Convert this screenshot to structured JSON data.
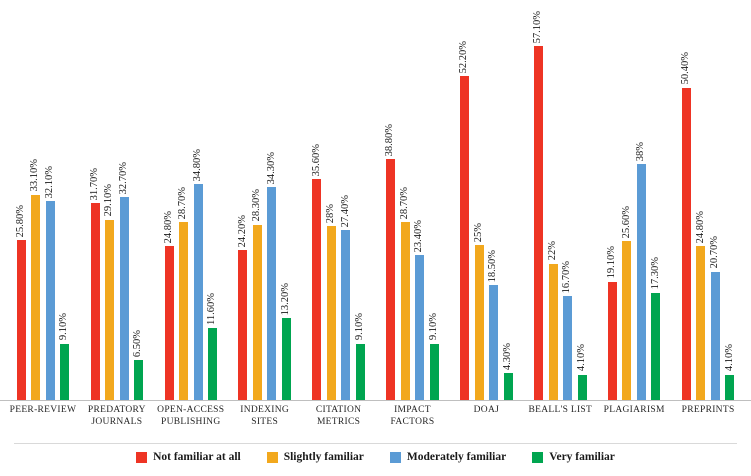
{
  "chart_data": {
    "type": "bar",
    "title": "",
    "xlabel": "",
    "ylabel": "",
    "ylim": [
      0,
      60
    ],
    "grid": false,
    "legend_position": "bottom",
    "value_label_format": "percent",
    "categories": [
      [
        "PEER-REVIEW"
      ],
      [
        "PREDATORY",
        "JOURNALS"
      ],
      [
        "OPEN-ACCESS",
        "PUBLISHING"
      ],
      [
        "INDEXING",
        "SITES"
      ],
      [
        "CITATION",
        "METRICS"
      ],
      [
        "IMPACT",
        "FACTORS"
      ],
      [
        "DOAJ"
      ],
      [
        "BEALL'S LIST"
      ],
      [
        "PLAGIARISM"
      ],
      [
        "PREPRINTS"
      ]
    ],
    "series": [
      {
        "name": "Not familiar at all",
        "color": "#ee3424",
        "values": [
          25.8,
          31.7,
          24.8,
          24.2,
          35.6,
          38.8,
          52.2,
          57.1,
          19.1,
          50.4
        ],
        "labels": [
          "25.80%",
          "31.70%",
          "24.80%",
          "24.20%",
          "35.60%",
          "38.80%",
          "52.20%",
          "57.10%",
          "19.10%",
          "50.40%"
        ]
      },
      {
        "name": "Slightly familiar",
        "color": "#f2a81d",
        "values": [
          33.1,
          29.1,
          28.7,
          28.3,
          28.0,
          28.7,
          25.0,
          22.0,
          25.6,
          24.8
        ],
        "labels": [
          "33.10%",
          "29.10%",
          "28.70%",
          "28.30%",
          "28%",
          "28.70%",
          "25%",
          "22%",
          "25.60%",
          "24.80%"
        ]
      },
      {
        "name": "Moderately familiar",
        "color": "#5b9bd5",
        "values": [
          32.1,
          32.7,
          34.8,
          34.3,
          27.4,
          23.4,
          18.5,
          16.7,
          38.0,
          20.7
        ],
        "labels": [
          "32.10%",
          "32.70%",
          "34.80%",
          "34.30%",
          "27.40%",
          "23.40%",
          "18.50%",
          "16.70%",
          "38%",
          "20.70%"
        ]
      },
      {
        "name": "Very familiar",
        "color": "#00a550",
        "values": [
          9.1,
          6.5,
          11.6,
          13.2,
          9.1,
          9.1,
          4.3,
          4.1,
          17.3,
          4.1
        ],
        "labels": [
          "9.10%",
          "6.50%",
          "11.60%",
          "13.20%",
          "9.10%",
          "9.10%",
          "4.30%",
          "4.10%",
          "17.30%",
          "4.10%"
        ]
      }
    ]
  }
}
